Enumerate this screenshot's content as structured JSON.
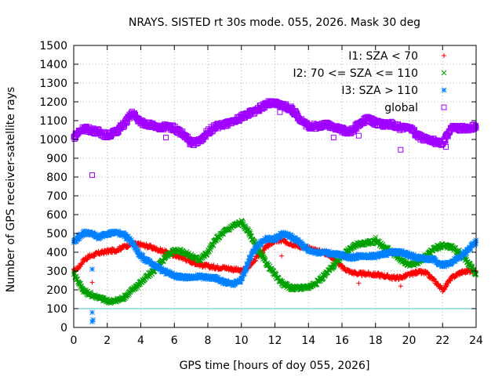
{
  "chart_data": {
    "type": "scatter",
    "title": "NRAYS. SISTED rt 30s mode. 055, 2026. Mask 30 deg",
    "xlabel": "GPS time [hours of doy 055, 2026]",
    "ylabel": "Number of GPS receiver-satellite rays",
    "xlim": [
      0,
      24
    ],
    "ylim": [
      0,
      1500
    ],
    "xticks": [
      "0",
      "2",
      "4",
      "6",
      "8",
      "10",
      "12",
      "14",
      "16",
      "18",
      "20",
      "22",
      "24"
    ],
    "yticks": [
      "0",
      "100",
      "200",
      "300",
      "400",
      "500",
      "600",
      "700",
      "800",
      "900",
      "1000",
      "1100",
      "1200",
      "1300",
      "1400",
      "1500"
    ],
    "reference_line": {
      "y": 100,
      "color": "#40c0c0"
    },
    "series": [
      {
        "name": "I1: SZA < 70",
        "color": "#ff0000",
        "marker": "plus",
        "x": [
          0,
          0.3,
          0.6,
          1,
          1.5,
          2,
          2.5,
          3,
          3.5,
          4,
          4.5,
          5,
          5.5,
          6,
          6.5,
          7,
          7.5,
          8,
          8.5,
          9,
          9.5,
          10,
          10.5,
          11,
          11.5,
          12,
          12.5,
          13,
          13.5,
          14,
          14.5,
          15,
          15.5,
          16,
          16.5,
          17,
          17.5,
          18,
          18.5,
          19,
          19.5,
          20,
          20.5,
          21,
          21.5,
          22,
          22.5,
          23,
          23.5,
          24
        ],
        "values": [
          300,
          320,
          360,
          380,
          395,
          405,
          410,
          430,
          445,
          440,
          430,
          415,
          400,
          385,
          370,
          350,
          335,
          325,
          320,
          318,
          310,
          300,
          330,
          380,
          430,
          460,
          460,
          445,
          430,
          420,
          410,
          395,
          370,
          320,
          295,
          285,
          285,
          280,
          275,
          265,
          265,
          280,
          295,
          290,
          250,
          200,
          260,
          290,
          300,
          305
        ],
        "outliers": [
          [
            1.1,
            240
          ],
          [
            12.4,
            380
          ],
          [
            19.5,
            220
          ],
          [
            17,
            235
          ]
        ]
      },
      {
        "name": "I2: 70 <= SZA <= 110",
        "color": "#00a000",
        "marker": "cross",
        "x": [
          0,
          0.3,
          0.6,
          1,
          1.5,
          2,
          2.5,
          3,
          3.5,
          4,
          4.5,
          5,
          5.5,
          6,
          6.5,
          7,
          7.5,
          8,
          8.5,
          9,
          9.5,
          10,
          10.5,
          11,
          11.5,
          12,
          12.5,
          13,
          13.5,
          14,
          14.5,
          15,
          15.5,
          16,
          16.5,
          17,
          17.5,
          18,
          18.5,
          19,
          19.5,
          20,
          20.5,
          21,
          21.5,
          22,
          22.5,
          23,
          23.5,
          24
        ],
        "values": [
          290,
          240,
          195,
          175,
          160,
          140,
          140,
          160,
          200,
          240,
          280,
          320,
          380,
          410,
          405,
          380,
          360,
          400,
          470,
          510,
          540,
          560,
          500,
          410,
          340,
          280,
          230,
          210,
          210,
          215,
          240,
          280,
          330,
          380,
          420,
          445,
          450,
          460,
          430,
          400,
          360,
          330,
          345,
          380,
          420,
          435,
          430,
          400,
          350,
          280
        ],
        "outliers": [
          [
            18,
            480
          ]
        ]
      },
      {
        "name": "I3: SZA > 110",
        "color": "#0080ff",
        "marker": "star",
        "x": [
          0,
          0.3,
          0.6,
          1,
          1.5,
          2,
          2.5,
          3,
          3.5,
          4,
          4.5,
          5,
          5.5,
          6,
          6.5,
          7,
          7.5,
          8,
          8.5,
          9,
          9.5,
          10,
          10.5,
          11,
          11.5,
          12,
          12.5,
          13,
          13.5,
          14,
          14.5,
          15,
          15.5,
          16,
          16.5,
          17,
          17.5,
          18,
          18.5,
          19,
          19.5,
          20,
          20.5,
          21,
          21.5,
          22,
          22.5,
          23,
          23.5,
          24
        ],
        "values": [
          455,
          480,
          505,
          500,
          480,
          500,
          505,
          495,
          450,
          380,
          345,
          320,
          295,
          275,
          265,
          270,
          270,
          265,
          260,
          240,
          230,
          250,
          370,
          440,
          470,
          470,
          500,
          480,
          450,
          410,
          400,
          400,
          390,
          385,
          370,
          380,
          380,
          380,
          390,
          400,
          400,
          385,
          370,
          365,
          360,
          330,
          345,
          370,
          410,
          455
        ],
        "outliers": [
          [
            1.1,
            80
          ],
          [
            1.1,
            30
          ],
          [
            1.15,
            40
          ],
          [
            1.1,
            310
          ]
        ]
      },
      {
        "name": "global",
        "color": "#a000ff",
        "marker": "square",
        "x": [
          0,
          0.3,
          0.6,
          1,
          1.5,
          2,
          2.5,
          3,
          3.5,
          4,
          4.5,
          5,
          5.5,
          6,
          6.5,
          7,
          7.5,
          8,
          8.5,
          9,
          9.5,
          10,
          10.5,
          11,
          11.5,
          12,
          12.5,
          13,
          13.5,
          14,
          14.5,
          15,
          15.5,
          16,
          16.5,
          17,
          17.5,
          18,
          18.5,
          19,
          19.5,
          20,
          20.5,
          21,
          21.5,
          22,
          22.5,
          23,
          23.5,
          24
        ],
        "values": [
          1010,
          1040,
          1060,
          1050,
          1040,
          1020,
          1040,
          1080,
          1140,
          1090,
          1080,
          1060,
          1070,
          1060,
          1030,
          980,
          990,
          1040,
          1070,
          1080,
          1090,
          1120,
          1140,
          1160,
          1190,
          1190,
          1180,
          1160,
          1110,
          1070,
          1070,
          1080,
          1070,
          1050,
          1040,
          1080,
          1110,
          1090,
          1080,
          1080,
          1060,
          1070,
          1020,
          1000,
          990,
          975,
          1060,
          1060,
          1060,
          1070
        ],
        "outliers": [
          [
            1.1,
            810
          ],
          [
            19.5,
            945
          ],
          [
            15.5,
            1010
          ],
          [
            17,
            1020
          ],
          [
            22.2,
            960
          ],
          [
            5.5,
            1010
          ],
          [
            12.3,
            1145
          ]
        ]
      }
    ],
    "legend": {
      "position": "top-right"
    }
  }
}
